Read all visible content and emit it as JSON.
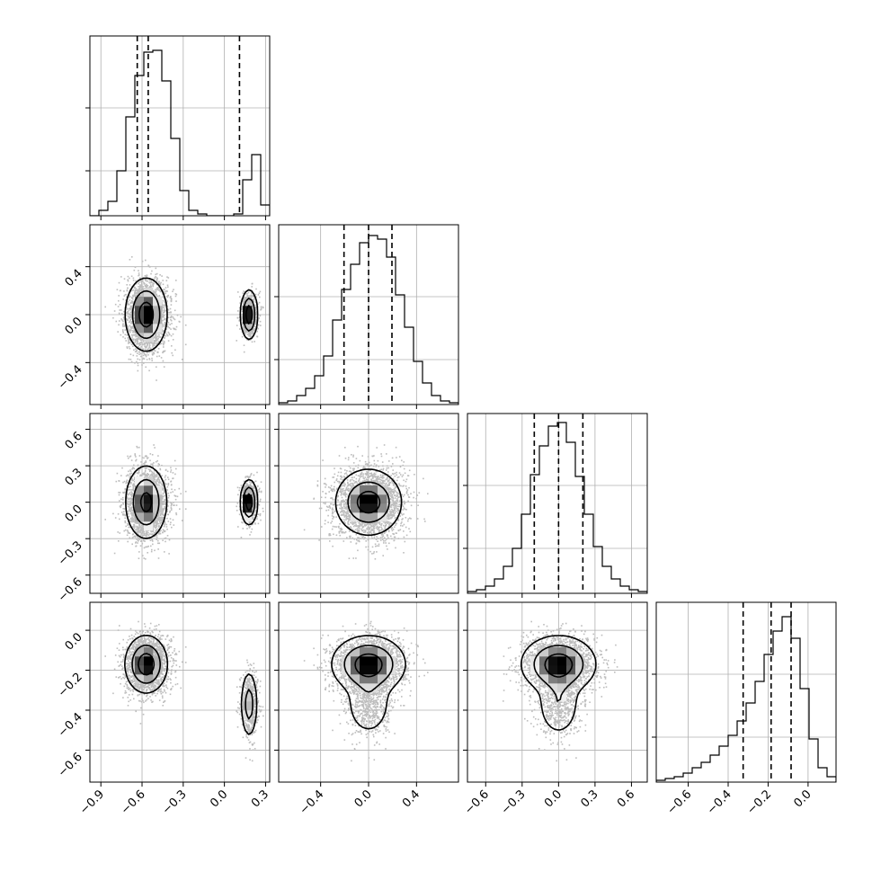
{
  "chart_data": {
    "type": "corner",
    "n_params": 4,
    "colors": {
      "frame": "#000000",
      "grid": "#b0b0b0",
      "points": "#bdbdbd",
      "contour": "#000000",
      "hist": "#000000"
    },
    "params": [
      {
        "index": 0,
        "range": [
          -0.98,
          0.33
        ],
        "ticks": [
          -0.9,
          -0.6,
          -0.3,
          0.0,
          0.3
        ],
        "tick_labels": [
          "−0.9",
          "−0.6",
          "−0.3",
          "0.0",
          "0.3"
        ],
        "quantiles": [
          -0.635,
          -0.555,
          0.11
        ]
      },
      {
        "index": 1,
        "range": [
          -0.75,
          0.75
        ],
        "ticks": [
          -0.4,
          0.0,
          0.4
        ],
        "tick_labels": [
          "−0.4",
          "0.0",
          "0.4"
        ],
        "quantiles": [
          -0.205,
          0.0,
          0.195
        ]
      },
      {
        "index": 2,
        "range": [
          -0.75,
          0.73
        ],
        "ticks": [
          -0.6,
          -0.3,
          0.0,
          0.3,
          0.6
        ],
        "tick_labels": [
          "−0.6",
          "−0.3",
          "0.0",
          "0.3",
          "0.6"
        ],
        "quantiles": [
          -0.2,
          0.0,
          0.2
        ]
      },
      {
        "index": 3,
        "range": [
          -0.76,
          0.14
        ],
        "ticks": [
          -0.6,
          -0.4,
          -0.2,
          0.0
        ],
        "tick_labels": [
          "−0.6",
          "−0.4",
          "−0.2",
          "0.0"
        ],
        "quantiles": [
          -0.325,
          -0.185,
          -0.085
        ]
      }
    ],
    "histograms": [
      {
        "param": 0,
        "edges_start": -0.98,
        "bin_width": 0.0655,
        "counts": [
          0,
          0.03,
          0.08,
          0.25,
          0.55,
          0.78,
          0.91,
          0.92,
          0.75,
          0.43,
          0.14,
          0.03,
          0.01,
          0,
          0,
          0,
          0.01,
          0.2,
          0.34,
          0.06
        ]
      },
      {
        "param": 1,
        "edges_start": -0.75,
        "bin_width": 0.075,
        "counts": [
          0.01,
          0.02,
          0.05,
          0.09,
          0.16,
          0.27,
          0.47,
          0.64,
          0.78,
          0.9,
          0.94,
          0.92,
          0.82,
          0.61,
          0.43,
          0.24,
          0.12,
          0.05,
          0.02,
          0.01
        ]
      },
      {
        "param": 2,
        "edges_start": -0.75,
        "bin_width": 0.074,
        "counts": [
          0.01,
          0.02,
          0.04,
          0.08,
          0.15,
          0.25,
          0.44,
          0.66,
          0.82,
          0.93,
          0.95,
          0.84,
          0.65,
          0.44,
          0.26,
          0.15,
          0.08,
          0.04,
          0.02,
          0.01
        ]
      },
      {
        "param": 3,
        "edges_start": -0.76,
        "bin_width": 0.045,
        "counts": [
          0.01,
          0.02,
          0.03,
          0.05,
          0.08,
          0.11,
          0.15,
          0.2,
          0.26,
          0.34,
          0.44,
          0.56,
          0.71,
          0.84,
          0.92,
          0.8,
          0.52,
          0.24,
          0.08,
          0.03
        ]
      }
    ],
    "clusters": [
      {
        "weight": 0.78,
        "center": [
          -0.57,
          0.0,
          0.0,
          -0.17
        ],
        "sigma": [
          0.075,
          0.15,
          0.15,
          0.07
        ]
      },
      {
        "weight": 0.22,
        "center": [
          0.18,
          0.0,
          0.0,
          -0.37
        ],
        "sigma": [
          0.03,
          0.1,
          0.09,
          0.085
        ]
      }
    ],
    "n_samples": 3000,
    "contour_levels": [
      0.12,
      0.4,
      0.75
    ],
    "grid": true
  }
}
